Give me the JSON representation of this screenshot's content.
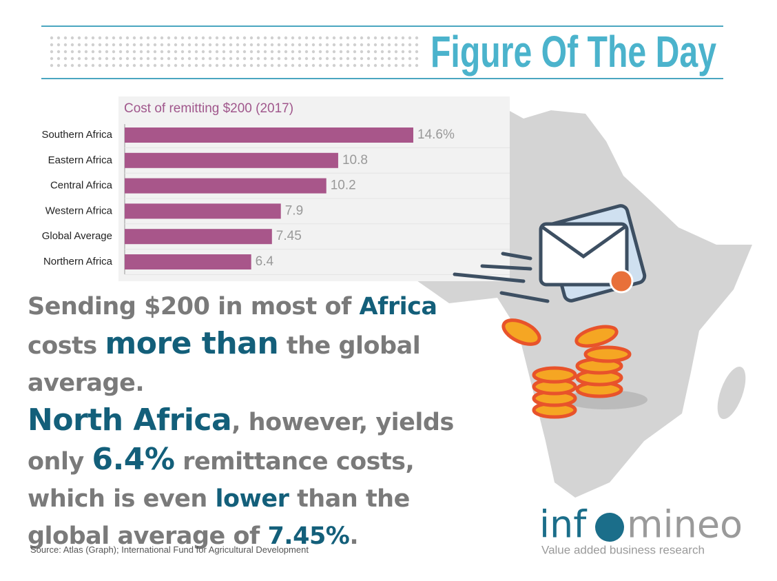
{
  "header": {
    "title": "Figure Of The Day"
  },
  "chart_data": {
    "type": "bar",
    "orientation": "horizontal",
    "title": "Cost of remitting $200 (2017)",
    "categories": [
      "Southern Africa",
      "Eastern Africa",
      "Central Africa",
      "Western Africa",
      "Global Average",
      "Northern Africa"
    ],
    "values": [
      14.6,
      10.8,
      10.2,
      7.9,
      7.45,
      6.4
    ],
    "value_labels": [
      "14.6%",
      "10.8",
      "10.2",
      "7.9",
      "7.45",
      "6.4"
    ],
    "color": "#a8568a"
  },
  "message": {
    "paragraph_1": [
      "Sending $200 in most of ",
      "Africa",
      " costs ",
      "more than",
      " the global average."
    ],
    "paragraph_2": [
      "North Africa",
      ", however, yields only ",
      "6.4%",
      " remittance costs, which is even ",
      "lower",
      " than the global average of ",
      "7.45%",
      "."
    ]
  },
  "logo": {
    "left": "inf",
    "right": "mineo",
    "tagline": "Value added business research"
  },
  "source": "Source: Atlas (Graph);  International Fund for Agricultural Development"
}
